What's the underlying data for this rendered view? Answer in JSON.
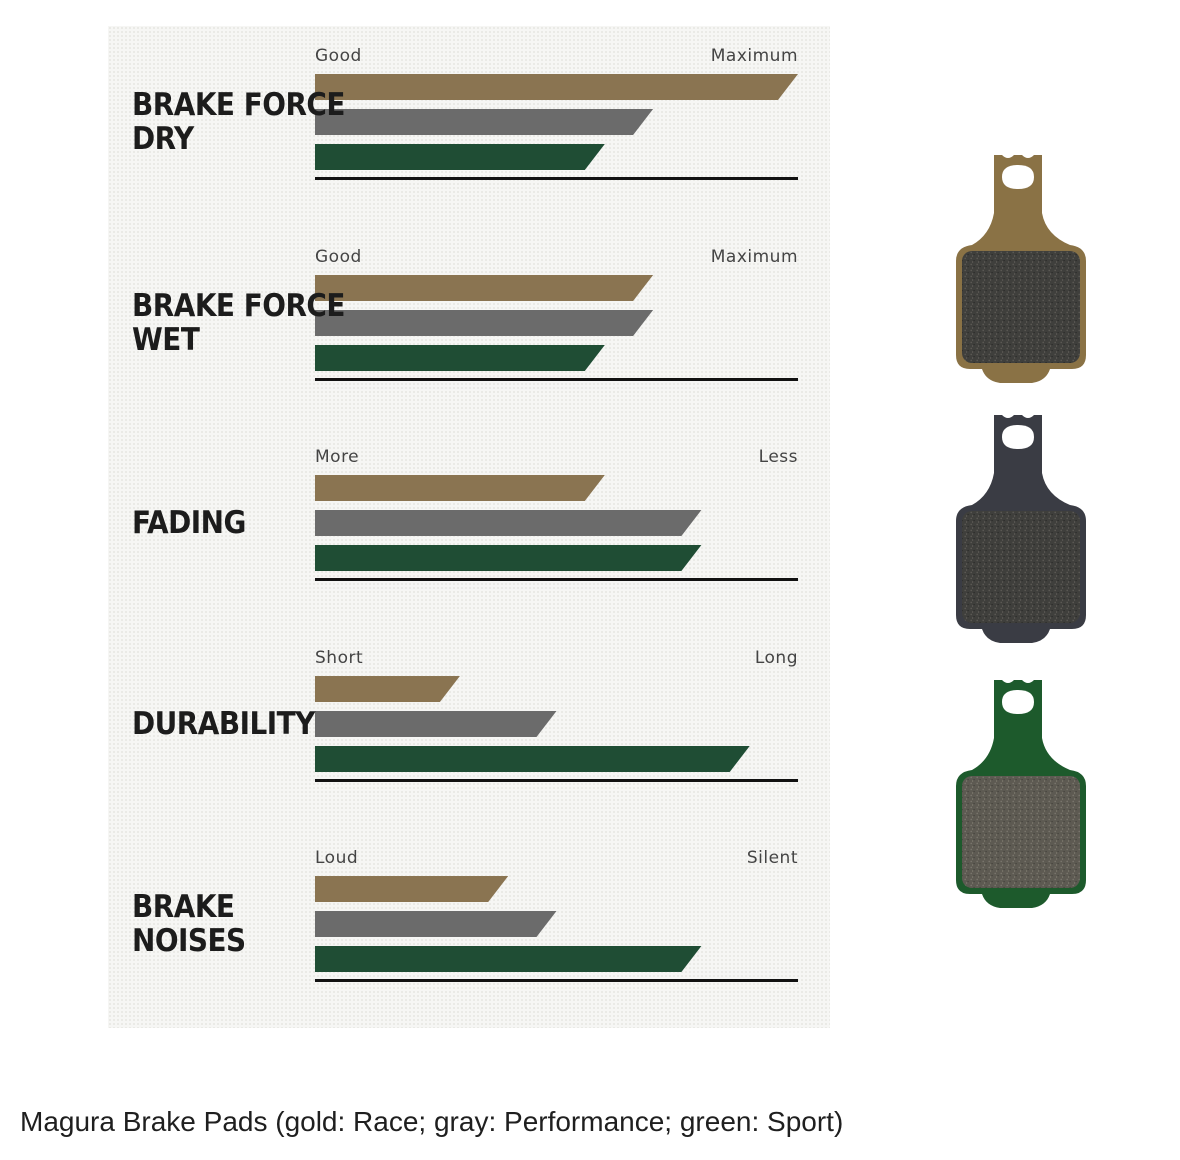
{
  "chart_data": {
    "type": "bar",
    "series": [
      {
        "name": "Race",
        "color": "#8a7451"
      },
      {
        "name": "Performance",
        "color": "#6b6b6b"
      },
      {
        "name": "Sport",
        "color": "#1f4d34"
      }
    ],
    "scale": {
      "min": 0,
      "max": 1
    },
    "categories": [
      {
        "label": [
          "BRAKE FORCE",
          "DRY"
        ],
        "low": "Good",
        "high": "Maximum",
        "values": [
          1.0,
          0.7,
          0.6
        ]
      },
      {
        "label": [
          "BRAKE FORCE",
          "WET"
        ],
        "low": "Good",
        "high": "Maximum",
        "values": [
          0.7,
          0.7,
          0.6
        ]
      },
      {
        "label": [
          "FADING"
        ],
        "low": "More",
        "high": "Less",
        "values": [
          0.6,
          0.8,
          0.8
        ]
      },
      {
        "label": [
          "DURABILITY"
        ],
        "low": "Short",
        "high": "Long",
        "values": [
          0.3,
          0.5,
          0.9
        ]
      },
      {
        "label": [
          "BRAKE",
          "NOISES"
        ],
        "low": "Loud",
        "high": "Silent",
        "values": [
          0.4,
          0.5,
          0.8
        ]
      }
    ]
  },
  "pads": [
    {
      "name": "Race",
      "plate_color": "#8a7245"
    },
    {
      "name": "Performance",
      "plate_color": "#3a3c44"
    },
    {
      "name": "Sport",
      "plate_color": "#1d5a2c"
    }
  ],
  "caption": "Magura Brake Pads (gold: Race; gray: Performance; green: Sport)"
}
